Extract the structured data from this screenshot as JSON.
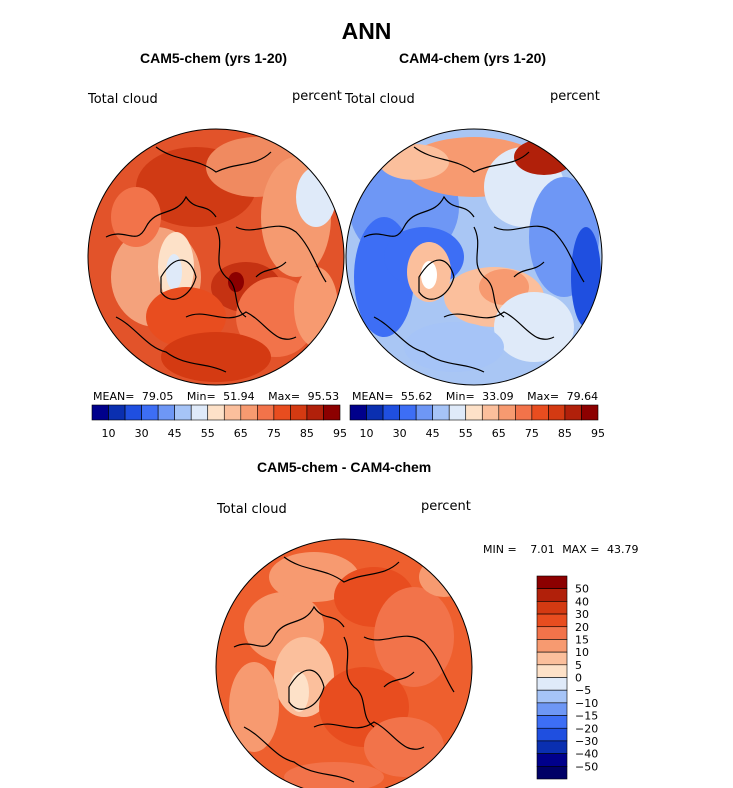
{
  "figure": {
    "title": "ANN"
  },
  "panels": [
    {
      "title": "CAM5-chem (yrs 1-20)",
      "left_label": "Total cloud",
      "right_label": "percent",
      "mean_label": "MEAN=",
      "mean": "79.05",
      "min_label": "Min=",
      "min": "51.94",
      "max_label": "Max=",
      "max": "95.53"
    },
    {
      "title": "CAM4-chem (yrs 1-20)",
      "left_label": "Total cloud",
      "right_label": "percent",
      "mean_label": "MEAN=",
      "mean": "55.62",
      "min_label": "Min=",
      "min": "33.09",
      "max_label": "Max=",
      "max": "79.64"
    },
    {
      "title": "CAM5-chem - CAM4-chem",
      "left_label": "Total cloud",
      "right_label": "percent",
      "min_label": "MIN =",
      "min": "7.01",
      "max_label": "MAX =",
      "max": "43.79"
    }
  ],
  "chart_data": [
    {
      "type": "heatmap",
      "title": "CAM5-chem (yrs 1-20)",
      "variable": "Total cloud",
      "units": "percent",
      "projection": "north-polar-stereographic",
      "mean": 79.05,
      "min": 51.94,
      "max": 95.53,
      "colorbar_tick_labels": [
        "10",
        "30",
        "45",
        "55",
        "65",
        "75",
        "85",
        "95"
      ],
      "colorbar_colors": [
        "#00008b",
        "#0a2fb0",
        "#1f4fe0",
        "#3d6ef5",
        "#6e97f5",
        "#a6c4f7",
        "#dfeaf9",
        "#fde1c8",
        "#fbbf9c",
        "#f79a70",
        "#f2734a",
        "#e84d1f",
        "#d43a12",
        "#b1200a",
        "#8c0000"
      ]
    },
    {
      "type": "heatmap",
      "title": "CAM4-chem (yrs 1-20)",
      "variable": "Total cloud",
      "units": "percent",
      "projection": "north-polar-stereographic",
      "mean": 55.62,
      "min": 33.09,
      "max": 79.64,
      "colorbar_tick_labels": [
        "10",
        "30",
        "45",
        "55",
        "65",
        "75",
        "85",
        "95"
      ],
      "colorbar_colors": [
        "#00008b",
        "#0a2fb0",
        "#1f4fe0",
        "#3d6ef5",
        "#6e97f5",
        "#a6c4f7",
        "#dfeaf9",
        "#fde1c8",
        "#fbbf9c",
        "#f79a70",
        "#f2734a",
        "#e84d1f",
        "#d43a12",
        "#b1200a",
        "#8c0000"
      ]
    },
    {
      "type": "heatmap",
      "title": "CAM5-chem - CAM4-chem",
      "variable": "Total cloud",
      "units": "percent",
      "projection": "north-polar-stereographic",
      "min": 7.01,
      "max": 43.79,
      "colorbar_orientation": "vertical",
      "colorbar_tick_labels": [
        "50",
        "40",
        "30",
        "20",
        "15",
        "10",
        "5",
        "0",
        "−5",
        "−10",
        "−15",
        "−20",
        "−30",
        "−40",
        "−50"
      ],
      "colorbar_colors": [
        "#8c0000",
        "#b1200a",
        "#d43a12",
        "#e84d1f",
        "#f2734a",
        "#f79a70",
        "#fbbf9c",
        "#fde1c8",
        "#dfeaf9",
        "#a6c4f7",
        "#6e97f5",
        "#3d6ef5",
        "#1f4fe0",
        "#0a2fb0",
        "#00008b",
        "#000066"
      ]
    }
  ]
}
